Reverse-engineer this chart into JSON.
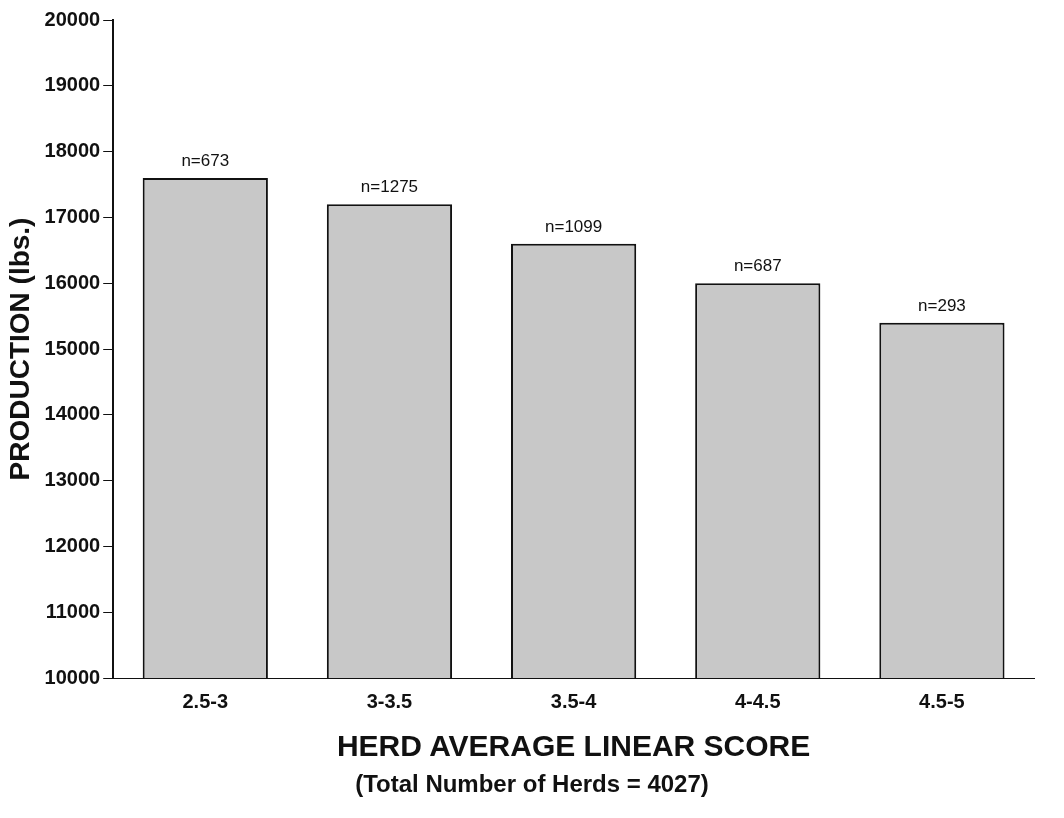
{
  "chart_data": {
    "type": "bar",
    "categories": [
      "2.5-3",
      "3-3.5",
      "3.5-4",
      "4-4.5",
      "4.5-5"
    ],
    "values": [
      17600,
      17200,
      16600,
      16000,
      15400
    ],
    "color": "#c8c8c8",
    "ylabel": "PRODUCTION (lbs.)",
    "xlabel": "HERD AVERAGE LINEAR SCORE",
    "annotations": [
      {
        "text": "n=673",
        "x": "2.5-3",
        "y": 17600
      },
      {
        "text": "n=1275",
        "x": "3-3.5",
        "y": 17200
      },
      {
        "text": "n=1099",
        "x": "3.5-4",
        "y": 16600
      },
      {
        "text": "n=687",
        "x": "4-4.5",
        "y": 16000
      },
      {
        "text": "n=293",
        "x": "4.5-5",
        "y": 15400
      },
      "(Total Number of Herds = 4027)"
    ],
    "ylim": [
      10000,
      20000
    ],
    "yticks": [
      10000,
      11000,
      12000,
      13000,
      14000,
      15000,
      16000,
      17000,
      18000,
      19000,
      20000
    ],
    "grid": false,
    "legend": false
  }
}
